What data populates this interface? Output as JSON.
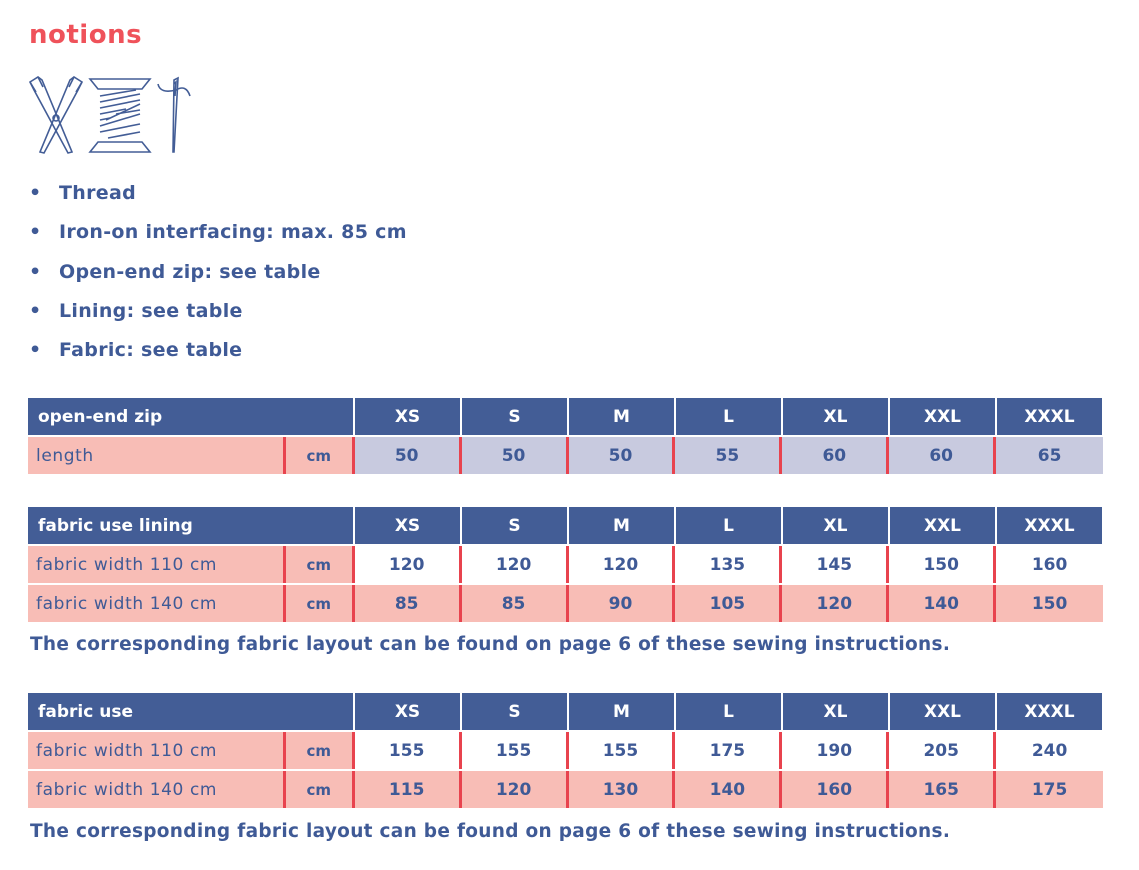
{
  "title": "notions",
  "icons": [
    "scissors-icon",
    "thread-spool-icon",
    "needle-icon"
  ],
  "bullets": [
    "Thread",
    "Iron-on interfacing: max. 85 cm",
    "Open-end zip: see table",
    "Lining: see table",
    "Fabric: see table"
  ],
  "sizes": [
    "XS",
    "S",
    "M",
    "L",
    "XL",
    "XXL",
    "XXXL"
  ],
  "tables": [
    {
      "title": "open-end zip",
      "rows": [
        {
          "label": "length",
          "unit": "cm",
          "style": "lav",
          "values": [
            "50",
            "50",
            "50",
            "55",
            "60",
            "60",
            "65"
          ]
        }
      ]
    },
    {
      "title": "fabric use lining",
      "rows": [
        {
          "label": "fabric width 110 cm",
          "unit": "cm",
          "style": "white",
          "values": [
            "120",
            "120",
            "120",
            "135",
            "145",
            "150",
            "160"
          ]
        },
        {
          "label": "fabric width 140 cm",
          "unit": "cm",
          "style": "pink",
          "values": [
            "85",
            "85",
            "90",
            "105",
            "120",
            "140",
            "150"
          ]
        }
      ]
    },
    {
      "title": "fabric use",
      "rows": [
        {
          "label": "fabric width 110 cm",
          "unit": "cm",
          "style": "white",
          "values": [
            "155",
            "155",
            "155",
            "175",
            "190",
            "205",
            "240"
          ]
        },
        {
          "label": "fabric width 140 cm",
          "unit": "cm",
          "style": "pink",
          "values": [
            "115",
            "120",
            "130",
            "140",
            "160",
            "165",
            "175"
          ]
        }
      ]
    }
  ],
  "notes": [
    "The corresponding fabric layout can be found on page 6 of these sewing instructions.",
    "The corresponding fabric layout can be found on page 6 of these sewing instructions."
  ],
  "colors": {
    "header": "#435d96",
    "pink": "#f8bdb6",
    "lavender": "#c8cadf",
    "red": "#e8434e",
    "title": "#ef525a",
    "text": "#3f5a96"
  }
}
